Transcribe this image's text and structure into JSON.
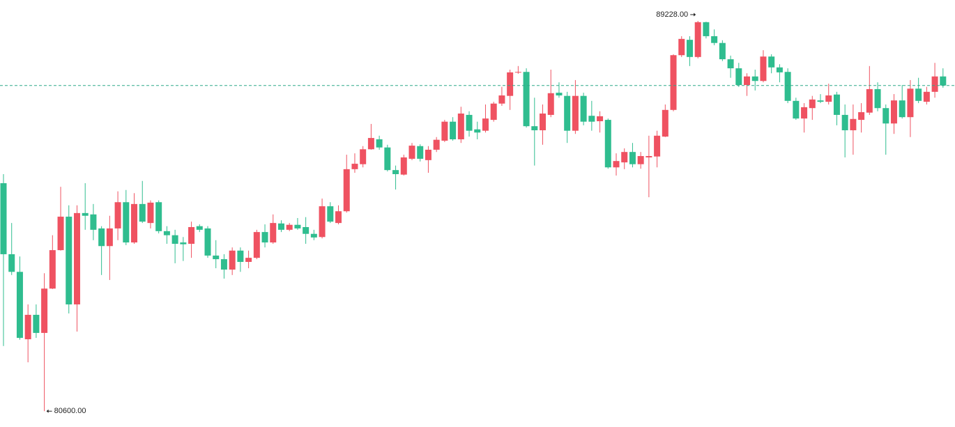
{
  "chart_data": {
    "type": "candlestick",
    "up_color": "#ef5261",
    "down_color": "#2fbd8f",
    "last_line_color": "#2fa889",
    "ylim": [
      80250,
      89690
    ],
    "annotations": [
      {
        "label": "89228.00",
        "value": 89228,
        "at": "high"
      },
      {
        "label": "80600.00",
        "value": 80600,
        "at": "low"
      }
    ],
    "open": [
      85640,
      84070,
      83680,
      82190,
      82730,
      82330,
      83310,
      84160,
      84900,
      82960,
      84980,
      84950,
      84640,
      84250,
      84640,
      85220,
      84330,
      85180,
      84760,
      85220,
      84580,
      84490,
      84330,
      84300,
      84690,
      84640,
      84040,
      83960,
      83730,
      84150,
      83900,
      83990,
      84560,
      84330,
      84750,
      84610,
      84720,
      84670,
      84520,
      84450,
      85130,
      84760,
      85020,
      85950,
      86060,
      86390,
      86610,
      86430,
      85930,
      85830,
      86180,
      86460,
      86150,
      86380,
      86580,
      87000,
      86610,
      87150,
      86830,
      86800,
      87040,
      87400,
      87570,
      88090,
      88100,
      86900,
      86810,
      87150,
      87640,
      87570,
      86800,
      87570,
      87130,
      87010,
      87040,
      85990,
      86100,
      86330,
      86060,
      86210,
      86230,
      86670,
      87260,
      88470,
      88810,
      88430,
      89200,
      88890,
      88740,
      88380,
      88180,
      87810,
      88000,
      87900,
      88440,
      88200,
      88100,
      87460,
      87070,
      87300,
      87470,
      87440,
      87600,
      87150,
      86810,
      87040,
      87200,
      87720,
      87300,
      86960,
      87470,
      87100,
      87730,
      87440,
      87660,
      88000
    ],
    "high": [
      85840,
      84760,
      84020,
      82960,
      82960,
      83650,
      84490,
      85560,
      85150,
      85150,
      85640,
      85180,
      84690,
      84920,
      85460,
      85490,
      85420,
      85690,
      85260,
      85260,
      84690,
      84610,
      84450,
      84790,
      84730,
      84690,
      84380,
      84070,
      84220,
      84220,
      84150,
      84610,
      84730,
      84950,
      84820,
      84760,
      84870,
      84890,
      84610,
      85300,
      85220,
      85150,
      86270,
      86300,
      86460,
      86950,
      86690,
      86490,
      86030,
      86270,
      86530,
      86500,
      86460,
      86660,
      87040,
      87100,
      87330,
      87230,
      87000,
      87380,
      87440,
      87770,
      88150,
      88230,
      88180,
      87530,
      87380,
      88150,
      87870,
      87660,
      87920,
      87640,
      87460,
      87230,
      87070,
      86300,
      86410,
      86530,
      86330,
      86690,
      86800,
      87380,
      88490,
      88890,
      88890,
      89228,
      89210,
      89040,
      88800,
      88460,
      88300,
      88070,
      88150,
      88580,
      88490,
      88270,
      88180,
      87530,
      87410,
      87570,
      87610,
      87840,
      87660,
      87380,
      87380,
      87410,
      88230,
      87870,
      87380,
      87610,
      87810,
      87920,
      87970,
      87770,
      88300,
      88180
    ],
    "low": [
      82040,
      83610,
      82180,
      81680,
      82220,
      80600,
      83300,
      84150,
      82760,
      82360,
      84610,
      84380,
      83610,
      83500,
      84380,
      84270,
      84300,
      84760,
      84640,
      84530,
      84300,
      83870,
      83920,
      83990,
      84560,
      83990,
      83760,
      83530,
      83610,
      83680,
      83760,
      83960,
      84220,
      84300,
      84560,
      84580,
      84610,
      84300,
      84380,
      84420,
      84760,
      84730,
      84990,
      85870,
      85990,
      86380,
      86380,
      85900,
      85500,
      85810,
      86150,
      86120,
      85870,
      86330,
      86550,
      86580,
      86530,
      86670,
      86610,
      86760,
      87000,
      87350,
      87260,
      88060,
      86870,
      86030,
      86490,
      87100,
      87530,
      86530,
      86730,
      86920,
      86800,
      86760,
      85960,
      85810,
      85950,
      85990,
      85960,
      85330,
      85990,
      86660,
      87230,
      88430,
      88230,
      88400,
      88840,
      88690,
      88340,
      87970,
      87770,
      87570,
      87690,
      87870,
      88070,
      87870,
      87410,
      87040,
      86760,
      87040,
      87410,
      87380,
      86920,
      86210,
      86270,
      86760,
      87150,
      87230,
      86270,
      86730,
      87070,
      86660,
      87410,
      87380,
      87530,
      87750
    ],
    "close": [
      84070,
      83680,
      82220,
      82730,
      82330,
      83310,
      84160,
      84900,
      82960,
      84980,
      84920,
      84610,
      84250,
      84640,
      85220,
      84330,
      85180,
      84790,
      85210,
      84580,
      84490,
      84300,
      84290,
      84670,
      84610,
      84040,
      83960,
      83730,
      84150,
      83900,
      83990,
      84560,
      84330,
      84760,
      84610,
      84720,
      84640,
      84520,
      84440,
      85130,
      84790,
      85020,
      85950,
      86070,
      86390,
      86640,
      86430,
      85930,
      85840,
      86210,
      86470,
      86180,
      86380,
      86600,
      87000,
      86610,
      87180,
      86800,
      86760,
      87070,
      87400,
      87580,
      88090,
      88100,
      86900,
      86810,
      87180,
      87630,
      87580,
      86800,
      87570,
      87000,
      87000,
      87120,
      85990,
      86130,
      86330,
      86060,
      86240,
      86240,
      86690,
      87260,
      88470,
      88830,
      88430,
      89200,
      88890,
      88740,
      88380,
      88180,
      87810,
      88000,
      87900,
      88440,
      88200,
      88090,
      87460,
      87070,
      87320,
      87490,
      87440,
      87580,
      87150,
      86810,
      87060,
      87210,
      87720,
      87300,
      86960,
      87470,
      87100,
      87730,
      87460,
      87660,
      88000,
      87800
    ]
  }
}
